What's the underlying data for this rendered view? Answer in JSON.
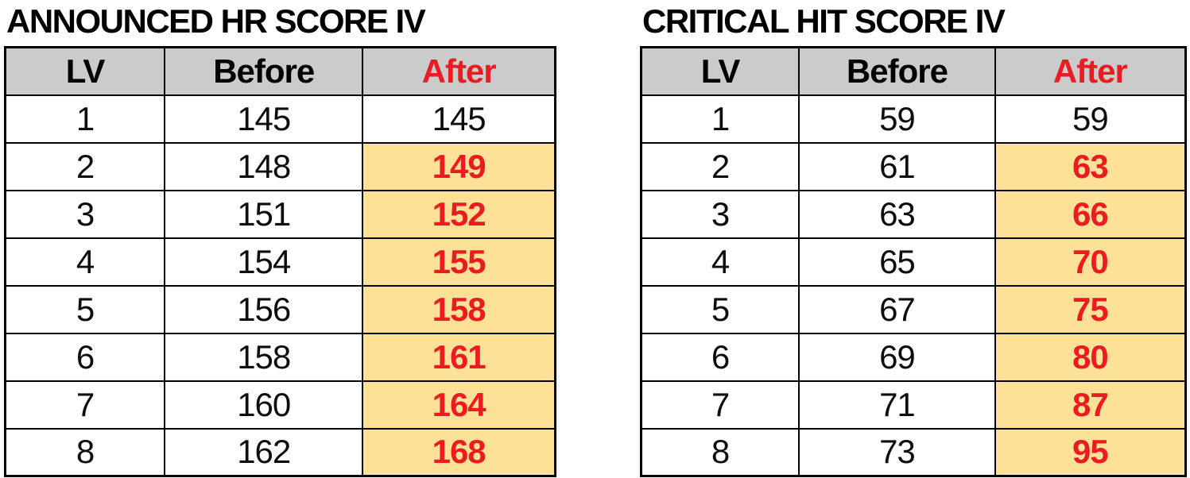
{
  "colors": {
    "header_bg": "#cbcbcb",
    "highlight_bg": "#fce196",
    "emphasis_red": "#ea1c22",
    "border": "#000000"
  },
  "tables": [
    {
      "title": "ANNOUNCED HR SCORE IV",
      "columns": [
        "LV",
        "Before",
        "After"
      ],
      "rows": [
        {
          "lv": "1",
          "before": "145",
          "after": "145",
          "highlight": false
        },
        {
          "lv": "2",
          "before": "148",
          "after": "149",
          "highlight": true
        },
        {
          "lv": "3",
          "before": "151",
          "after": "152",
          "highlight": true
        },
        {
          "lv": "4",
          "before": "154",
          "after": "155",
          "highlight": true
        },
        {
          "lv": "5",
          "before": "156",
          "after": "158",
          "highlight": true
        },
        {
          "lv": "6",
          "before": "158",
          "after": "161",
          "highlight": true
        },
        {
          "lv": "7",
          "before": "160",
          "after": "164",
          "highlight": true
        },
        {
          "lv": "8",
          "before": "162",
          "after": "168",
          "highlight": true
        }
      ]
    },
    {
      "title": "CRITICAL HIT SCORE IV",
      "columns": [
        "LV",
        "Before",
        "After"
      ],
      "rows": [
        {
          "lv": "1",
          "before": "59",
          "after": "59",
          "highlight": false
        },
        {
          "lv": "2",
          "before": "61",
          "after": "63",
          "highlight": true
        },
        {
          "lv": "3",
          "before": "63",
          "after": "66",
          "highlight": true
        },
        {
          "lv": "4",
          "before": "65",
          "after": "70",
          "highlight": true
        },
        {
          "lv": "5",
          "before": "67",
          "after": "75",
          "highlight": true
        },
        {
          "lv": "6",
          "before": "69",
          "after": "80",
          "highlight": true
        },
        {
          "lv": "7",
          "before": "71",
          "after": "87",
          "highlight": true
        },
        {
          "lv": "8",
          "before": "73",
          "after": "95",
          "highlight": true
        }
      ]
    }
  ]
}
